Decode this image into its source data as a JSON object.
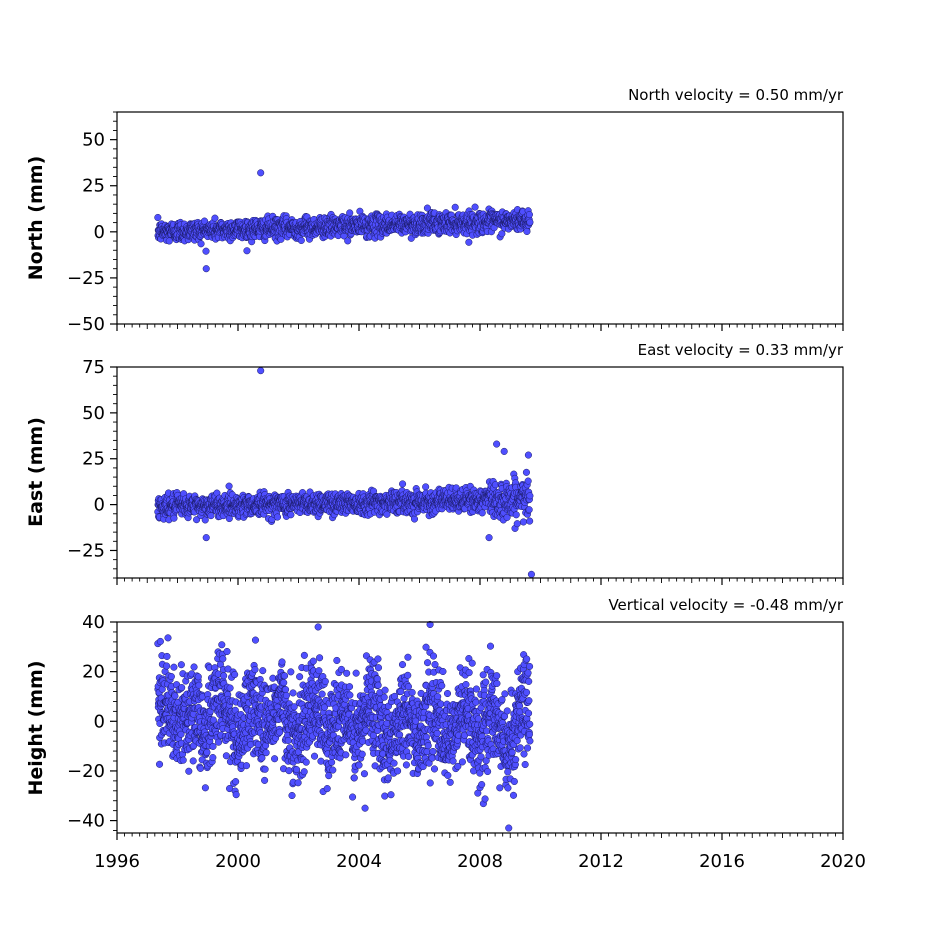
{
  "chart_data": [
    {
      "type": "scatter",
      "annotation": "North velocity = 0.50 mm/yr",
      "ylabel": "North (mm)",
      "xlim": [
        1996,
        2020
      ],
      "ylim": [
        -50,
        65
      ],
      "yticks": [
        -50,
        -25,
        0,
        25,
        50
      ],
      "x_start": 1997.35,
      "x_end": 2009.65,
      "n_points": 1500,
      "trend_at_start": 0.0,
      "slope_mm_per_yr": 0.5,
      "noise_mm": 2.8,
      "outliers": [
        {
          "x": 2000.75,
          "y": 32
        },
        {
          "x": 1998.95,
          "y": -20
        }
      ],
      "marker_color": "#4f4fff",
      "marker_edge_color": "#1a1a66",
      "series": [
        {
          "values": []
        }
      ]
    },
    {
      "type": "scatter",
      "annotation": "East velocity = 0.33 mm/yr",
      "ylabel": "East (mm)",
      "xlim": [
        1996,
        2020
      ],
      "ylim": [
        -40,
        75
      ],
      "yticks": [
        -25,
        0,
        25,
        50,
        75
      ],
      "x_start": 1997.35,
      "x_end": 2009.65,
      "n_points": 1500,
      "trend_at_start": -1.0,
      "slope_mm_per_yr": 0.33,
      "noise_mm": 3.0,
      "outliers": [
        {
          "x": 2000.75,
          "y": 73
        },
        {
          "x": 1998.95,
          "y": -18
        },
        {
          "x": 2008.55,
          "y": 33
        },
        {
          "x": 2008.8,
          "y": 29
        },
        {
          "x": 2009.7,
          "y": -38
        },
        {
          "x": 2009.6,
          "y": 27
        },
        {
          "x": 2008.3,
          "y": -18
        }
      ],
      "marker_color": "#4f4fff",
      "marker_edge_color": "#1a1a66",
      "series": [
        {
          "values": []
        }
      ]
    },
    {
      "type": "scatter",
      "annotation": "Vertical velocity = -0.48 mm/yr",
      "ylabel": "Height (mm)",
      "xlim": [
        1996,
        2020
      ],
      "ylim": [
        -45,
        40
      ],
      "yticks": [
        -40,
        -20,
        0,
        20,
        40
      ],
      "x_start": 1997.35,
      "x_end": 2009.65,
      "n_points": 2200,
      "trend_at_start": 3.0,
      "slope_mm_per_yr": -0.48,
      "noise_mm": 9.5,
      "outliers": [
        {
          "x": 2008.95,
          "y": -43
        },
        {
          "x": 2006.35,
          "y": 39
        },
        {
          "x": 2002.65,
          "y": 38
        },
        {
          "x": 2004.2,
          "y": -35
        }
      ],
      "marker_color": "#4f4fff",
      "marker_edge_color": "#1a1a66",
      "series": [
        {
          "values": []
        }
      ]
    }
  ],
  "x_tick_labels": [
    "1996",
    "2000",
    "2004",
    "2008",
    "2012",
    "2016",
    "2020"
  ]
}
